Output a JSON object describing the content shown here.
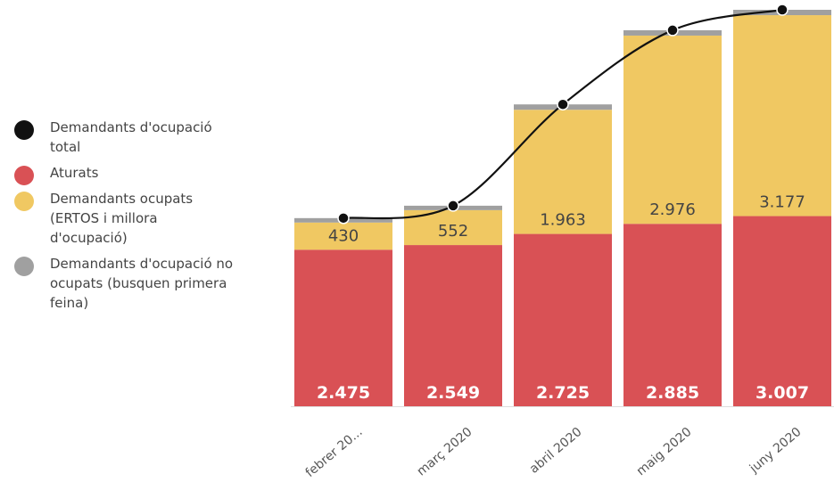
{
  "chart_data": {
    "type": "bar",
    "stacked": true,
    "categories": [
      "febrer 20...",
      "març 2020",
      "abril 2020",
      "maig 2020",
      "juny 2020"
    ],
    "series": [
      {
        "name": "Demandants d'ocupació total",
        "type": "line",
        "color": "#111111",
        "values": [
          2975,
          3171,
          4773,
          5946,
          6269
        ]
      },
      {
        "name": "Aturats",
        "color": "#d95155",
        "values": [
          2475,
          2549,
          2725,
          2885,
          3007
        ],
        "value_labels": [
          "2.475",
          "2.549",
          "2.725",
          "2.885",
          "3.007"
        ]
      },
      {
        "name": "Demandants ocupats (ERTOS i millora d'ocupació)",
        "color": "#f0c862",
        "values": [
          430,
          552,
          1963,
          2976,
          3177
        ],
        "value_labels": [
          "430",
          "552",
          "1.963",
          "2.976",
          "3.177"
        ]
      },
      {
        "name": "Demandants d'ocupació no ocupats (busquen primera feina)",
        "color": "#a0a0a0",
        "values": [
          70,
          70,
          85,
          85,
          85
        ]
      }
    ]
  }
}
